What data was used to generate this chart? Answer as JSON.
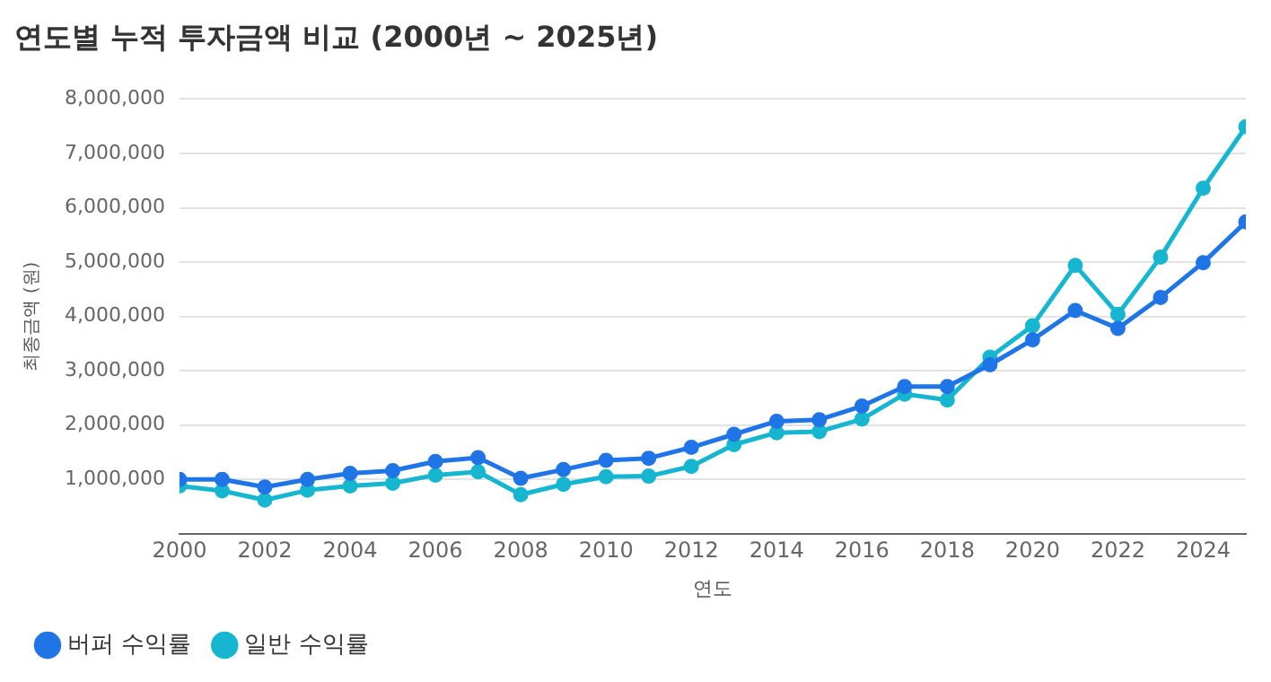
{
  "chart_data": {
    "type": "line",
    "title": "연도별 누적 투자금액 비교 (2000년 ~ 2025년)",
    "xlabel": "연도",
    "ylabel": "최종금액 (원)",
    "x": [
      2000,
      2001,
      2002,
      2003,
      2004,
      2005,
      2006,
      2007,
      2008,
      2009,
      2010,
      2011,
      2012,
      2013,
      2014,
      2015,
      2016,
      2017,
      2018,
      2019,
      2020,
      2021,
      2022,
      2023,
      2024,
      2025
    ],
    "series": [
      {
        "name": "버퍼 수익률",
        "color": "#1f74e6",
        "values": [
          1000000,
          1000000,
          860000,
          1000000,
          1110000,
          1160000,
          1330000,
          1400000,
          1020000,
          1180000,
          1350000,
          1390000,
          1590000,
          1830000,
          2070000,
          2100000,
          2350000,
          2710000,
          2710000,
          3110000,
          3570000,
          4110000,
          3780000,
          4350000,
          4990000,
          5740000
        ]
      },
      {
        "name": "일반 수익률",
        "color": "#17b6d0",
        "values": [
          880000,
          790000,
          620000,
          800000,
          880000,
          930000,
          1080000,
          1140000,
          720000,
          910000,
          1050000,
          1060000,
          1240000,
          1640000,
          1860000,
          1880000,
          2110000,
          2570000,
          2460000,
          3250000,
          3830000,
          4940000,
          4040000,
          5090000,
          6360000,
          7490000
        ]
      }
    ],
    "xlim": [
      2000,
      2025
    ],
    "xticks": [
      2000,
      2002,
      2004,
      2006,
      2008,
      2010,
      2012,
      2014,
      2016,
      2018,
      2020,
      2022,
      2024
    ],
    "ylim": [
      0,
      8000000
    ],
    "yticks": [
      {
        "value": 1000000,
        "label": "1,000,000"
      },
      {
        "value": 2000000,
        "label": "2,000,000"
      },
      {
        "value": 3000000,
        "label": "3,000,000"
      },
      {
        "value": 4000000,
        "label": "4,000,000"
      },
      {
        "value": 5000000,
        "label": "5,000,000"
      },
      {
        "value": 6000000,
        "label": "6,000,000"
      },
      {
        "value": 7000000,
        "label": "7,000,000"
      },
      {
        "value": 8000000,
        "label": "8,000,000"
      }
    ],
    "grid": "y",
    "legend": "bottom left",
    "marker": "circle",
    "line_style": "solid"
  }
}
